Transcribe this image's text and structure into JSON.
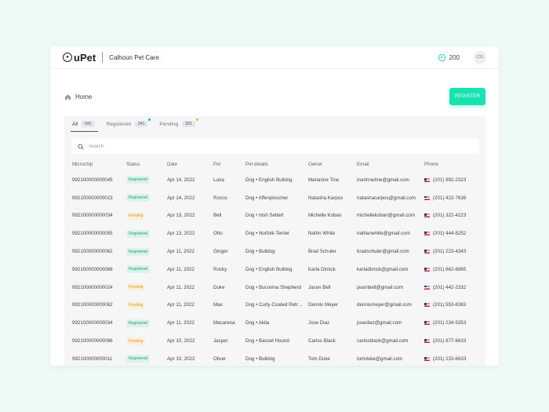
{
  "app": {
    "logo_text": "uPet",
    "clinic_name": "Calhoun Pet Care",
    "credits": "200",
    "avatar_initials": "CG"
  },
  "header": {
    "breadcrumb": "Home",
    "register_label": "REGISTER"
  },
  "tabs": [
    {
      "label": "All",
      "count": "642",
      "active": true,
      "dot": null
    },
    {
      "label": "Registered",
      "count": "341",
      "active": false,
      "dot": "#19b98a"
    },
    {
      "label": "Pending",
      "count": "301",
      "active": false,
      "dot": "#f0b429"
    }
  ],
  "search": {
    "placeholder": "Search"
  },
  "table": {
    "columns": [
      "Microchip",
      "Status",
      "Date",
      "Pet",
      "Pet details",
      "Owner",
      "Email",
      "Phone"
    ],
    "rows": [
      {
        "microchip": "992100000000045",
        "status": "Registered",
        "date": "Apr 14, 2022",
        "pet": "Luna",
        "details": "Dog • English Bulldog",
        "owner": "Marianne Tine",
        "email": "marinnetine@gmail.com",
        "phone": "(201) 992-2323"
      },
      {
        "microchip": "992100000000023",
        "status": "Registered",
        "date": "Apr 14, 2022",
        "pet": "Rocco",
        "details": "Dog • Affenpinscher",
        "owner": "Natasha Karpos",
        "email": "natashacarpos@gmail.com",
        "phone": "(201) 422-7636"
      },
      {
        "microchip": "992100000000034",
        "status": "Pending",
        "date": "Apr 13, 2022",
        "pet": "Bell",
        "details": "Dog • Irish Settert",
        "owner": "Michelle Koban",
        "email": "michellekoban@gmail.com",
        "phone": "(201) 322-4223"
      },
      {
        "microchip": "992100000000055",
        "status": "Registered",
        "date": "Apr 13, 2022",
        "pet": "Otto",
        "details": "Dog • Norfolk-Terrier",
        "owner": "Nathn White",
        "email": "nathanwhite@gmail.com",
        "phone": "(201) 444-5252"
      },
      {
        "microchip": "992100000000062",
        "status": "Registered",
        "date": "Apr 11, 2022",
        "pet": "Ginger",
        "details": "Dog • Bulldog",
        "owner": "Brad Schuler",
        "email": "bradschuler@gmail.com",
        "phone": "(201) 223-4343"
      },
      {
        "microchip": "992100000000088",
        "status": "Registered",
        "date": "Apr 11, 2022",
        "pet": "Rocky",
        "details": "Dog • English Bulldog",
        "owner": "Karla Dimick",
        "email": "karladimick@gmail.com",
        "phone": "(201) 662-6865"
      },
      {
        "microchip": "992100000000024",
        "status": "Pending",
        "date": "Apr 11, 2022",
        "pet": "Duke",
        "details": "Dog • Bucovina Shepherd",
        "owner": "Jason Bell",
        "email": "jasonbell@gmail.com",
        "phone": "(201) 442-2332"
      },
      {
        "microchip": "992100000000062",
        "status": "Pending",
        "date": "Apr 11, 2022",
        "pet": "Max",
        "details": "Dog • Curly-Coated Retriever",
        "owner": "Dennis Meyer",
        "email": "dennismeyer@gmail.com",
        "phone": "(201) 553-6363"
      },
      {
        "microchip": "992100000000034",
        "status": "Registered",
        "date": "Apr 11, 2022",
        "pet": "Macarena",
        "details": "Dog • Akita",
        "owner": "Jose Diaz",
        "email": "josediaz@gmail.com",
        "phone": "(201) 234-5353"
      },
      {
        "microchip": "992100000000096",
        "status": "Pending",
        "date": "Apr 10, 2022",
        "pet": "Jasper",
        "details": "Dog • Basset Hound",
        "owner": "Carlos Black",
        "email": "carlosblack@gmail.com",
        "phone": "(201) 877-6633"
      },
      {
        "microchip": "992100000000011",
        "status": "Registered",
        "date": "Apr 10, 2022",
        "pet": "Oliver",
        "details": "Dog • Bulldog",
        "owner": "Tom Duke",
        "email": "tomduke@gmail.com",
        "phone": "(201) 233-6633"
      }
    ]
  },
  "colors": {
    "accent": "#19e2b0",
    "registered_bg": "#dbf3ea",
    "registered_text": "#2a9c75",
    "pending_bg": "#fbf0d9",
    "pending_text": "#d49a2a"
  },
  "icons": {
    "logo": "paw-icon",
    "credits": "coin-icon",
    "breadcrumb": "home-icon",
    "search": "search-icon",
    "phone_country": "us-flag-icon"
  }
}
